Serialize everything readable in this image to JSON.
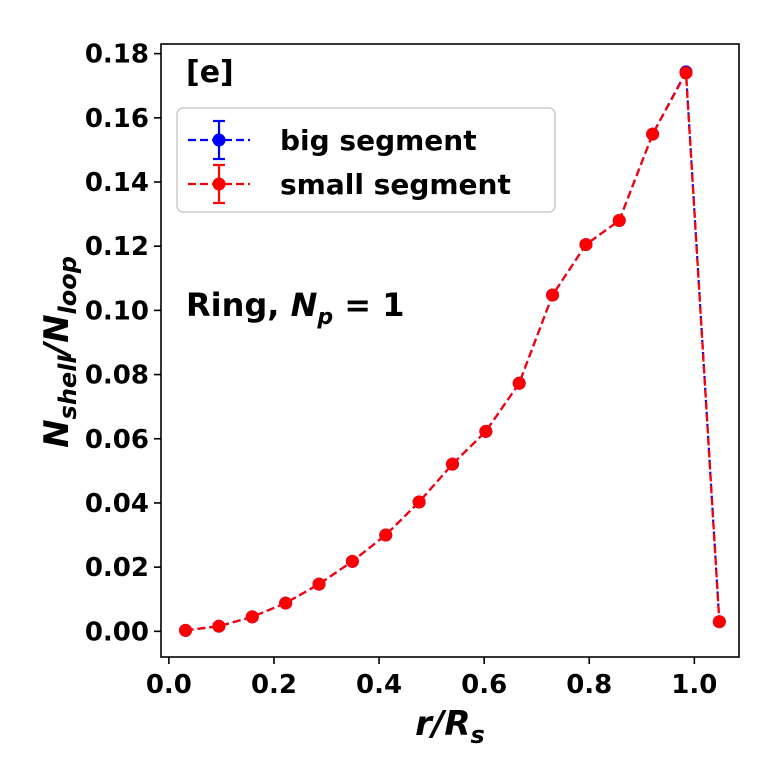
{
  "chart_data": {
    "type": "line",
    "panel_tag": "[e]",
    "annotation": {
      "prefix": "Ring, ",
      "var": "N",
      "sub": "p",
      "rest": " = 1"
    },
    "xlabel": {
      "main": "r/R",
      "sub": "s"
    },
    "ylabel": {
      "main1": "N",
      "sub1": "shell",
      "mid": "/N",
      "sub2": "loop"
    },
    "xlim": [
      -0.015,
      1.085
    ],
    "ylim": [
      -0.008,
      0.183
    ],
    "xticks": [
      0.0,
      0.2,
      0.4,
      0.6,
      0.8,
      1.0
    ],
    "xtick_labels": [
      "0.0",
      "0.2",
      "0.4",
      "0.6",
      "0.8",
      "1.0"
    ],
    "yticks": [
      0.0,
      0.02,
      0.04,
      0.06,
      0.08,
      0.1,
      0.12,
      0.14,
      0.16,
      0.18
    ],
    "ytick_labels": [
      "0.00",
      "0.02",
      "0.04",
      "0.06",
      "0.08",
      "0.10",
      "0.12",
      "0.14",
      "0.16",
      "0.18"
    ],
    "legend_position": "upper-left",
    "x": [
      0.0317,
      0.0952,
      0.1587,
      0.2222,
      0.2857,
      0.3492,
      0.4127,
      0.4762,
      0.5397,
      0.6032,
      0.6667,
      0.7302,
      0.7937,
      0.8571,
      0.9206,
      0.9841,
      1.0476
    ],
    "series": [
      {
        "name": "big segment",
        "color": "#0000ff",
        "values": [
          0.0003,
          0.0016,
          0.0045,
          0.0088,
          0.0147,
          0.0218,
          0.03,
          0.0403,
          0.0521,
          0.0623,
          0.0773,
          0.1048,
          0.1205,
          0.128,
          0.1549,
          0.1743,
          0.003
        ]
      },
      {
        "name": "small segment",
        "color": "#ff0000",
        "values": [
          0.0003,
          0.0016,
          0.0045,
          0.0088,
          0.0147,
          0.0218,
          0.03,
          0.0403,
          0.0521,
          0.0623,
          0.0773,
          0.1048,
          0.1205,
          0.128,
          0.1549,
          0.174,
          0.003
        ]
      }
    ]
  }
}
